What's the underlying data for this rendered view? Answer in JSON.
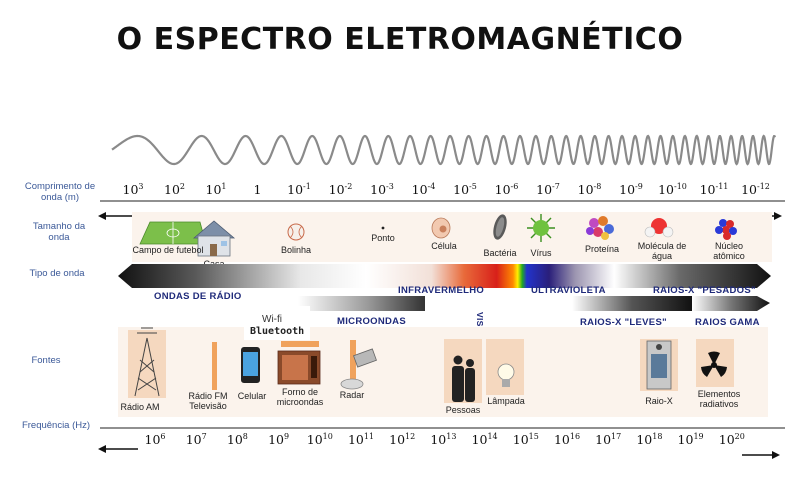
{
  "title": "O ESPECTRO ELETROMAGNÉTICO",
  "row_labels": {
    "wavelength": "Comprimento de onda (m)",
    "size": "Tamanho da onda",
    "wave_type": "Tipo de onda",
    "sources": "Fontes",
    "frequency": "Frequência (Hz)"
  },
  "wavelength_ticks": [
    {
      "base": "10",
      "exp": "3"
    },
    {
      "base": "10",
      "exp": "2"
    },
    {
      "base": "10",
      "exp": "1"
    },
    {
      "base": "1",
      "exp": ""
    },
    {
      "base": "10",
      "exp": "-1"
    },
    {
      "base": "10",
      "exp": "-2"
    },
    {
      "base": "10",
      "exp": "-3"
    },
    {
      "base": "10",
      "exp": "-4"
    },
    {
      "base": "10",
      "exp": "-5"
    },
    {
      "base": "10",
      "exp": "-6"
    },
    {
      "base": "10",
      "exp": "-7"
    },
    {
      "base": "10",
      "exp": "-8"
    },
    {
      "base": "10",
      "exp": "-9"
    },
    {
      "base": "10",
      "exp": "-10"
    },
    {
      "base": "10",
      "exp": "-11"
    },
    {
      "base": "10",
      "exp": "-12"
    }
  ],
  "size_items": [
    {
      "label": "Campo de futebol",
      "icon": "football-field-icon"
    },
    {
      "label": "Casa",
      "icon": "house-icon"
    },
    {
      "label": "Bolinha",
      "icon": "ball-icon"
    },
    {
      "label": "Ponto",
      "icon": "dot-icon"
    },
    {
      "label": "Célula",
      "icon": "cell-icon"
    },
    {
      "label": "Bactéria",
      "icon": "bacteria-icon"
    },
    {
      "label": "Vírus",
      "icon": "virus-icon"
    },
    {
      "label": "Proteína",
      "icon": "protein-icon"
    },
    {
      "label": "Molécula de água",
      "icon": "water-molecule-icon"
    },
    {
      "label": "Núcleo atômico",
      "icon": "atomic-nucleus-icon"
    }
  ],
  "wave_types": {
    "radio": "ONDAS DE RÁDIO",
    "infrared": "INFRAVERMELHO",
    "ultraviolet": "ULTRAVIOLETA",
    "xray_heavy": "RAIOS-X \"PESADOS\"",
    "microwaves": "MICROONDAS",
    "visible": "VISÍVEL",
    "xray_light": "RAIOS-X \"LEVES\"",
    "gamma": "RAIOS GAMA"
  },
  "wifi": {
    "line1": "Wi-fi",
    "line2": "Bluetooth"
  },
  "sources": [
    {
      "label": "Rádio AM",
      "icon": "radio-tower-icon"
    },
    {
      "label": "Rádio FM Televisão",
      "icon": "fm-tv-bar-icon"
    },
    {
      "label": "Celular",
      "icon": "cellphone-icon"
    },
    {
      "label": "Forno de microondas",
      "icon": "microwave-oven-icon"
    },
    {
      "label": "Radar",
      "icon": "radar-icon"
    },
    {
      "label": "Pessoas",
      "icon": "people-icon"
    },
    {
      "label": "Lâmpada",
      "icon": "lightbulb-icon"
    },
    {
      "label": "Raio-X",
      "icon": "xray-machine-icon"
    },
    {
      "label": "Elementos radiativos",
      "icon": "radiation-icon"
    }
  ],
  "frequency_ticks": [
    {
      "base": "10",
      "exp": "6"
    },
    {
      "base": "10",
      "exp": "7"
    },
    {
      "base": "10",
      "exp": "8"
    },
    {
      "base": "10",
      "exp": "9"
    },
    {
      "base": "10",
      "exp": "10"
    },
    {
      "base": "10",
      "exp": "11"
    },
    {
      "base": "10",
      "exp": "12"
    },
    {
      "base": "10",
      "exp": "13"
    },
    {
      "base": "10",
      "exp": "14"
    },
    {
      "base": "10",
      "exp": "15"
    },
    {
      "base": "10",
      "exp": "16"
    },
    {
      "base": "10",
      "exp": "17"
    },
    {
      "base": "10",
      "exp": "18"
    },
    {
      "base": "10",
      "exp": "19"
    },
    {
      "base": "10",
      "exp": "20"
    }
  ]
}
